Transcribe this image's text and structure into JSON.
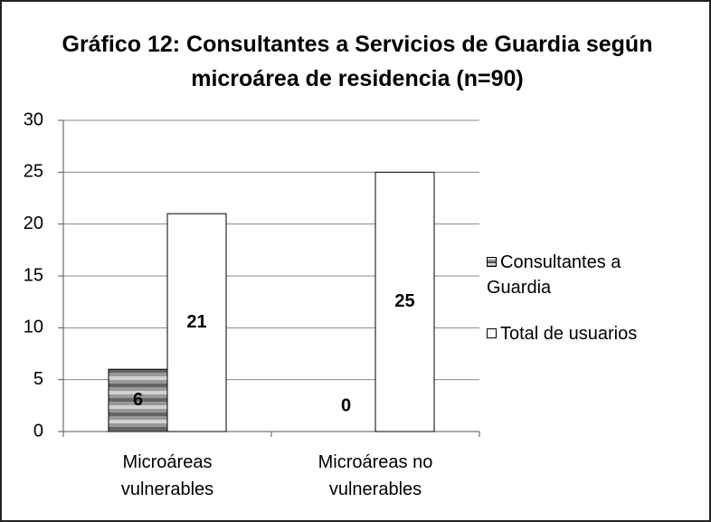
{
  "chart_data": {
    "type": "bar",
    "title": "Gráfico 12: Consultantes a Servicios de Guardia según microárea de residencia (n=90)",
    "categories": [
      "Microáreas vulnerables",
      "Microáreas no vulnerables"
    ],
    "series": [
      {
        "name": "Consultantes a Guardia",
        "color": "#999999",
        "values": [
          6,
          0
        ]
      },
      {
        "name": "Total de usuarios",
        "color": "#ffffff",
        "values": [
          21,
          25
        ]
      }
    ],
    "ylim": [
      0,
      30
    ],
    "yticks": [
      0,
      5,
      10,
      15,
      20,
      25,
      30
    ],
    "grid": true,
    "legend": "right"
  }
}
